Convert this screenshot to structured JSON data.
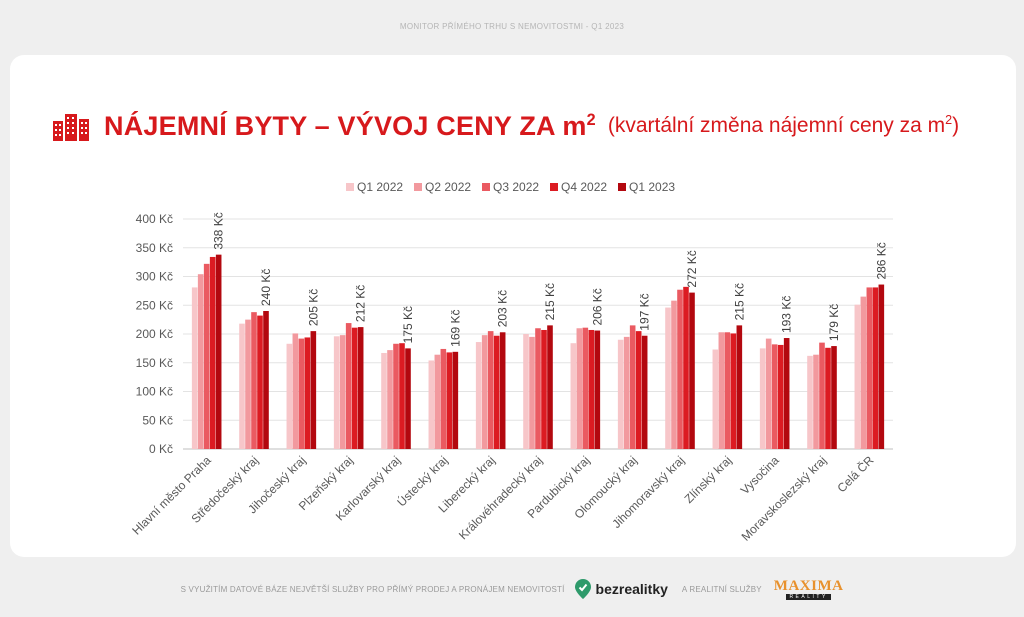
{
  "header": {
    "caption": "MONITOR PŘÍMÉHO TRHU S NEMOVITOSTMI - Q1 2023"
  },
  "title": {
    "main": "NÁJEMNÍ BYTY – VÝVOJ CENY ZA m",
    "main_sup": "2",
    "sub": "(kvartální změna nájemní ceny za m",
    "sub_sup": "2",
    "sub_end": ")",
    "icon": "buildings-icon"
  },
  "footer": {
    "text1": "S VYUŽITÍM DATOVÉ BÁZE NEJVĚTŠÍ SLUŽBY PRO PŘÍMÝ PRODEJ A PRONÁJEM NEMOVITOSTÍ",
    "brand": "bezrealitky",
    "text2": "A REALITNÍ SLUŽBY",
    "logo_word": "MAXIMA",
    "logo_sub": "REALITY"
  },
  "chart_data": {
    "type": "bar",
    "title": "",
    "xlabel": "",
    "ylabel": "",
    "ylim": [
      0,
      400
    ],
    "yticks": [
      0,
      50,
      100,
      150,
      200,
      250,
      300,
      350,
      400
    ],
    "tick_suffix": " Kč",
    "grid": true,
    "legend_position": "top-center",
    "categories": [
      "Hlavní město Praha",
      "Středočeský kraj",
      "Jihočeský kraj",
      "Plzeňský kraj",
      "Karlovarský kraj",
      "Ústecký kraj",
      "Liberecký kraj",
      "Královéhradecký kraj",
      "Pardubický kraj",
      "Olomoucký kraj",
      "Jihomoravský kraj",
      "Zlínský kraj",
      "Vysočina",
      "Moravskoslezský kraj",
      "Celá ČR"
    ],
    "series": [
      {
        "name": "Q1 2022",
        "color": "#f7c6c9",
        "values": [
          281,
          218,
          183,
          196,
          167,
          154,
          186,
          200,
          184,
          190,
          246,
          173,
          175,
          162,
          251
        ]
      },
      {
        "name": "Q2 2022",
        "color": "#f2999e",
        "values": [
          304,
          225,
          201,
          198,
          172,
          164,
          198,
          195,
          210,
          195,
          258,
          203,
          192,
          164,
          265
        ]
      },
      {
        "name": "Q3 2022",
        "color": "#ea5a61",
        "values": [
          322,
          238,
          192,
          219,
          183,
          174,
          205,
          210,
          211,
          215,
          277,
          203,
          182,
          185,
          281
        ]
      },
      {
        "name": "Q4 2022",
        "color": "#dc1b22",
        "values": [
          334,
          232,
          194,
          211,
          184,
          168,
          197,
          207,
          207,
          205,
          282,
          201,
          181,
          176,
          281
        ]
      },
      {
        "name": "Q1 2023",
        "color": "#b3080f",
        "values": [
          338,
          240,
          205,
          212,
          175,
          169,
          203,
          215,
          206,
          197,
          272,
          215,
          193,
          179,
          286
        ]
      }
    ],
    "data_labels": [
      "338 Kč",
      "240 Kč",
      "205 Kč",
      "212 Kč",
      "175 Kč",
      "169 Kč",
      "203 Kč",
      "215 Kč",
      "206 Kč",
      "197 Kč",
      "272 Kč",
      "215 Kč",
      "193 Kč",
      "179 Kč",
      "286 Kč"
    ]
  }
}
